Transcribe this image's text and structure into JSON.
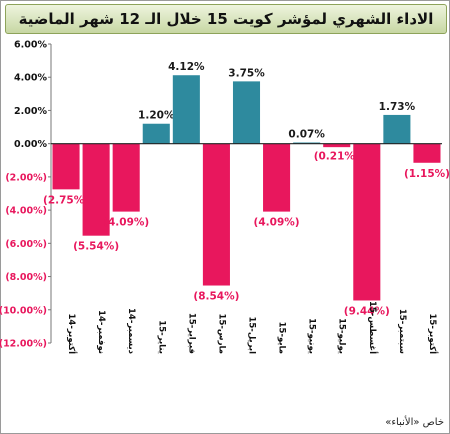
{
  "title": "الاداء الشهري لمؤشر كويت 15 خلال الـ 12 شهر الماضية",
  "credit": "خاص «الأنباء»",
  "colors": {
    "positive": "#2e8a9e",
    "negative": "#e8175d",
    "negative_label": "#e8175d",
    "positive_label": "#1a1a1a",
    "zero_line": "#222222",
    "grid": "#777777"
  },
  "chart_data": {
    "type": "bar",
    "title": "الاداء الشهري لمؤشر كويت 15 خلال الـ 12 شهر الماضية",
    "xlabel": "",
    "ylabel": "",
    "ylim": [
      -12,
      6
    ],
    "yticks": [
      6,
      4,
      2,
      0,
      -2,
      -4,
      -6,
      -8,
      -10,
      -12
    ],
    "ytick_labels": [
      "6.00%",
      "4.00%",
      "2.00%",
      "0.00%",
      "(2.00%)",
      "(4.00%)",
      "(6.00%)",
      "(8.00%)",
      "(10.00%)",
      "(12.00%)"
    ],
    "grid": false,
    "categories": [
      "أكتوبر-14",
      "نوفمبر-14",
      "ديسمبر-14",
      "يناير-15",
      "فبراير-15",
      "مارس-15",
      "ابريل-15",
      "مايو-15",
      "يونيو-15",
      "يوليو-15",
      "أغسطس-15",
      "سبتمبر-15",
      "أكتوبر-15"
    ],
    "values": [
      -2.75,
      -5.54,
      -4.09,
      1.2,
      4.12,
      -8.54,
      3.75,
      -4.09,
      0.07,
      -0.21,
      -9.44,
      1.73,
      -1.15
    ],
    "value_labels": [
      "(2.75%)",
      "(5.54%)",
      "(4.09%)",
      "1.20%",
      "4.12%",
      "(8.54%)",
      "3.75%",
      "(4.09%)",
      "0.07%",
      "(0.21%)",
      "(9.44%)",
      "1.73%",
      "(1.15%)"
    ]
  }
}
